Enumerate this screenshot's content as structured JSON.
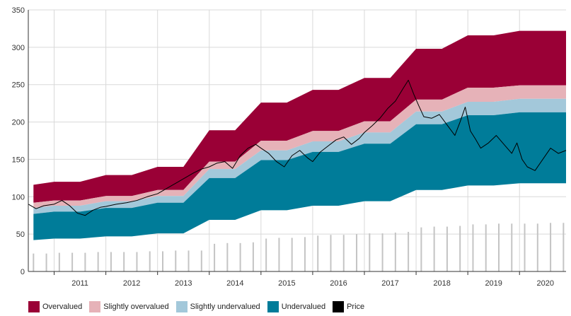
{
  "chart_data": {
    "type": "area",
    "title": "",
    "xlabel": "",
    "ylabel": "",
    "x_ticks": [
      "2011",
      "2012",
      "2013",
      "2014",
      "2015",
      "2016",
      "2017",
      "2018",
      "2019",
      "2020"
    ],
    "xlim": [
      2010.5,
      2020.9
    ],
    "ylim": [
      0,
      350
    ],
    "y_ticks": [
      0,
      50,
      100,
      150,
      200,
      250,
      300,
      350
    ],
    "grid": true,
    "legend_position": "bottom",
    "series": [
      {
        "name": "Overvalued",
        "color": "#9a0036"
      },
      {
        "name": "Slightly overvalued",
        "color": "#e6b2b8"
      },
      {
        "name": "Slightly undervalued",
        "color": "#a3c8da"
      },
      {
        "name": "Undervalued",
        "color": "#007c99"
      },
      {
        "name": "Price",
        "color": "#000000"
      }
    ],
    "bands": {
      "x": [
        2010.6,
        2011.0,
        2011.5,
        2012.0,
        2012.5,
        2013.0,
        2013.5,
        2014.0,
        2014.5,
        2015.0,
        2015.5,
        2016.0,
        2016.5,
        2017.0,
        2017.5,
        2018.0,
        2018.5,
        2019.0,
        2019.5,
        2020.0,
        2020.9
      ],
      "base": [
        42,
        44,
        44,
        47,
        47,
        51,
        51,
        69,
        69,
        82,
        82,
        88,
        88,
        94,
        94,
        109,
        109,
        115,
        115,
        118,
        118
      ],
      "undervalued": [
        77,
        80,
        80,
        85,
        85,
        92,
        92,
        125,
        125,
        149,
        149,
        160,
        160,
        171,
        171,
        197,
        197,
        209,
        209,
        213,
        213
      ],
      "slightly_undervalued": [
        85,
        88,
        88,
        94,
        94,
        101,
        101,
        137,
        137,
        162,
        162,
        174,
        174,
        186,
        186,
        214,
        214,
        227,
        227,
        231,
        231
      ],
      "slightly_overvalued": [
        92,
        95,
        95,
        101,
        101,
        109,
        109,
        147,
        147,
        175,
        175,
        188,
        188,
        201,
        201,
        230,
        230,
        246,
        246,
        249,
        249
      ],
      "overvalued": [
        116,
        120,
        120,
        129,
        129,
        140,
        140,
        189,
        189,
        226,
        226,
        243,
        243,
        259,
        259,
        298,
        298,
        316,
        316,
        322,
        322
      ]
    },
    "price": {
      "x": [
        2010.5,
        2010.65,
        2010.8,
        2011.0,
        2011.15,
        2011.3,
        2011.45,
        2011.6,
        2011.75,
        2011.9,
        2012.0,
        2012.2,
        2012.4,
        2012.6,
        2012.8,
        2013.0,
        2013.2,
        2013.4,
        2013.55,
        2013.7,
        2013.85,
        2014.0,
        2014.15,
        2014.3,
        2014.45,
        2014.6,
        2014.75,
        2014.9,
        2015.0,
        2015.15,
        2015.3,
        2015.45,
        2015.6,
        2015.75,
        2015.9,
        2016.0,
        2016.15,
        2016.3,
        2016.45,
        2016.6,
        2016.75,
        2016.9,
        2017.0,
        2017.15,
        2017.3,
        2017.45,
        2017.6,
        2017.75,
        2017.85,
        2017.95,
        2018.05,
        2018.15,
        2018.3,
        2018.45,
        2018.6,
        2018.75,
        2018.85,
        2018.95,
        2019.05,
        2019.15,
        2019.25,
        2019.4,
        2019.55,
        2019.7,
        2019.85,
        2019.95,
        2020.05,
        2020.15,
        2020.3,
        2020.45,
        2020.6,
        2020.75,
        2020.9
      ],
      "y": [
        90,
        84,
        88,
        90,
        95,
        88,
        78,
        75,
        82,
        86,
        87,
        90,
        92,
        95,
        100,
        104,
        112,
        120,
        126,
        132,
        137,
        140,
        145,
        147,
        138,
        155,
        165,
        170,
        165,
        158,
        147,
        140,
        155,
        162,
        152,
        147,
        160,
        168,
        176,
        180,
        170,
        178,
        186,
        195,
        205,
        218,
        228,
        245,
        256,
        238,
        222,
        207,
        205,
        210,
        196,
        182,
        200,
        220,
        188,
        177,
        165,
        172,
        182,
        170,
        158,
        172,
        150,
        140,
        135,
        150,
        165,
        158,
        162
      ]
    },
    "volume": {
      "x": [
        2010.6,
        2010.85,
        2011.1,
        2011.35,
        2011.6,
        2011.85,
        2012.1,
        2012.35,
        2012.6,
        2012.85,
        2013.1,
        2013.35,
        2013.6,
        2013.85,
        2014.1,
        2014.35,
        2014.6,
        2014.85,
        2015.1,
        2015.35,
        2015.6,
        2015.85,
        2016.1,
        2016.35,
        2016.6,
        2016.85,
        2017.1,
        2017.35,
        2017.6,
        2017.85,
        2018.1,
        2018.35,
        2018.6,
        2018.85,
        2019.1,
        2019.35,
        2019.6,
        2019.85,
        2020.1,
        2020.35,
        2020.6,
        2020.85
      ],
      "y": [
        24,
        24,
        25,
        25,
        25,
        26,
        26,
        26,
        26,
        27,
        27,
        28,
        28,
        28,
        37,
        38,
        38,
        39,
        44,
        45,
        45,
        46,
        48,
        49,
        49,
        50,
        51,
        51,
        52,
        53,
        59,
        60,
        60,
        61,
        63,
        63,
        64,
        64,
        64,
        64,
        65,
        65
      ]
    }
  }
}
